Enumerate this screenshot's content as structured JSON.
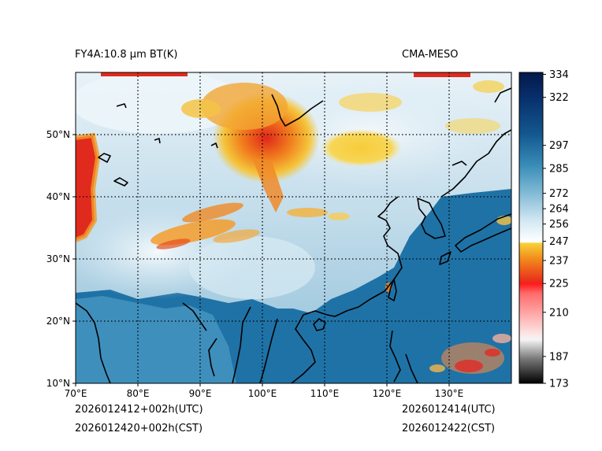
{
  "title_left": "FY4A:10.8 µm BT(K)",
  "title_right": "CMA-MESO",
  "init_utc": "2026012412+002h(UTC)",
  "init_cst": "2026012420+002h(CST)",
  "valid_utc": "2026012414(UTC)",
  "valid_cst": "2026012422(CST)",
  "map": {
    "lon_range": [
      70,
      140
    ],
    "lat_range": [
      10,
      60
    ],
    "lon_ticks": [
      {
        "value": 70,
        "label": "70°E"
      },
      {
        "value": 80,
        "label": "80°E"
      },
      {
        "value": 90,
        "label": "90°E"
      },
      {
        "value": 100,
        "label": "100°E"
      },
      {
        "value": 110,
        "label": "110°E"
      },
      {
        "value": 120,
        "label": "120°E"
      },
      {
        "value": 130,
        "label": "130°E"
      }
    ],
    "lat_ticks": [
      {
        "value": 10,
        "label": "10°N"
      },
      {
        "value": 20,
        "label": "20°N"
      },
      {
        "value": 30,
        "label": "30°N"
      },
      {
        "value": 40,
        "label": "40°N"
      },
      {
        "value": 50,
        "label": "50°N"
      }
    ]
  },
  "colorbar": {
    "range": [
      173,
      335
    ],
    "ticks": [
      {
        "value": 334,
        "label": "334"
      },
      {
        "value": 322,
        "label": "322"
      },
      {
        "value": 297,
        "label": "297"
      },
      {
        "value": 285,
        "label": "285"
      },
      {
        "value": 272,
        "label": "272"
      },
      {
        "value": 264,
        "label": "264"
      },
      {
        "value": 256,
        "label": "256"
      },
      {
        "value": 247,
        "label": "247"
      },
      {
        "value": 237,
        "label": "237"
      },
      {
        "value": 225,
        "label": "225"
      },
      {
        "value": 210,
        "label": "210"
      },
      {
        "value": 187,
        "label": "187"
      },
      {
        "value": 173,
        "label": "173"
      }
    ]
  },
  "colors": {
    "ocean_warm": "#1e6fa4",
    "land_cool": "#a9cfe3",
    "cold_cloud_yellow": "#f6cf3e",
    "cold_cloud_orange": "#f08a1c",
    "cold_cloud_red": "#e2261d",
    "coast": "#000000"
  }
}
